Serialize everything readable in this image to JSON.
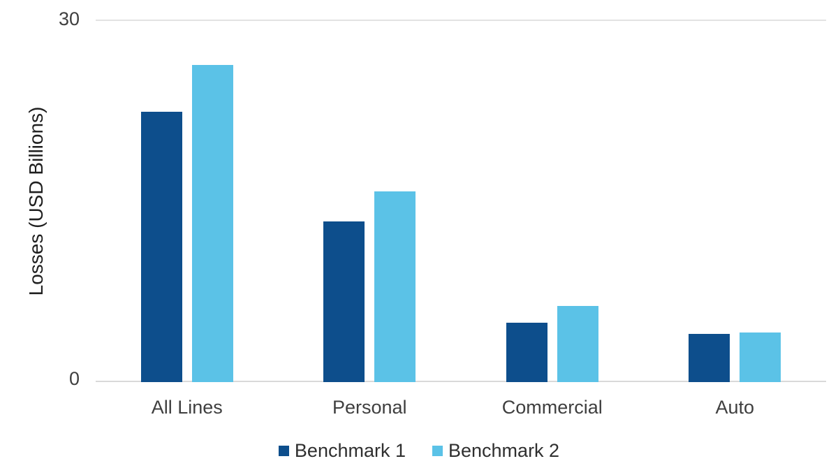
{
  "chart_data": {
    "type": "bar",
    "title": "",
    "categories": [
      "All Lines",
      "Personal",
      "Commercial",
      "Auto"
    ],
    "series": [
      {
        "name": "Benchmark 1",
        "color": "#0d4e8c",
        "values": [
          22.4,
          13.3,
          4.9,
          4.0
        ]
      },
      {
        "name": "Benchmark 2",
        "color": "#5bc2e7",
        "values": [
          26.3,
          15.8,
          6.3,
          4.1
        ]
      }
    ],
    "xlabel": "",
    "ylabel": "Losses (USD Billions)",
    "ylim": [
      0,
      30
    ],
    "yticks": [
      0,
      30
    ],
    "grid": "horizontal lines at y=0 and y=30 only",
    "legend_position": "bottom"
  },
  "colors": {
    "background": "#ffffff",
    "gridline_top": "#e2e2e2",
    "gridline_base": "#d9d9d9",
    "tick_text": "#3f3f3f",
    "axis_title_text": "#1f1f1f",
    "legend_text": "#2f2f2f"
  }
}
